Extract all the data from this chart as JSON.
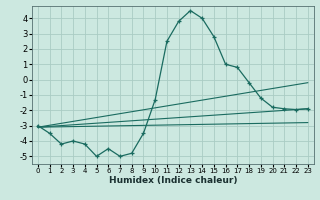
{
  "title": "",
  "xlabel": "Humidex (Indice chaleur)",
  "bg_color": "#cce8e0",
  "grid_color": "#aaccc4",
  "line_color": "#1a6b60",
  "xlim": [
    -0.5,
    23.5
  ],
  "ylim": [
    -5.5,
    4.8
  ],
  "yticks": [
    -5,
    -4,
    -3,
    -2,
    -1,
    0,
    1,
    2,
    3,
    4
  ],
  "xticks": [
    0,
    1,
    2,
    3,
    4,
    5,
    6,
    7,
    8,
    9,
    10,
    11,
    12,
    13,
    14,
    15,
    16,
    17,
    18,
    19,
    20,
    21,
    22,
    23
  ],
  "series1_x": [
    0,
    1,
    2,
    3,
    4,
    5,
    6,
    7,
    8,
    9,
    10,
    11,
    12,
    13,
    14,
    15,
    16,
    17,
    18,
    19,
    20,
    21,
    22,
    23
  ],
  "series1_y": [
    -3.0,
    -3.5,
    -4.2,
    -4.0,
    -4.2,
    -5.0,
    -4.5,
    -5.0,
    -4.8,
    -3.5,
    -1.3,
    2.5,
    3.8,
    4.5,
    4.0,
    2.8,
    1.0,
    0.8,
    -0.2,
    -1.2,
    -1.8,
    -1.9,
    -1.95,
    -1.9
  ],
  "series2_x": [
    0,
    23
  ],
  "series2_y": [
    -3.1,
    -0.2
  ],
  "series3_x": [
    0,
    23
  ],
  "series3_y": [
    -3.1,
    -1.9
  ],
  "series4_x": [
    0,
    23
  ],
  "series4_y": [
    -3.1,
    -2.8
  ]
}
